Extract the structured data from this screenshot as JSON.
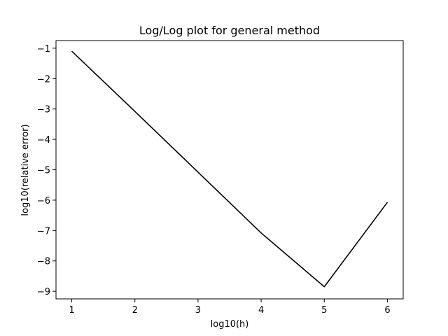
{
  "chart_data": {
    "type": "line",
    "title": "Log/Log plot for general method",
    "xlabel": "log10(h)",
    "ylabel": "log10(relative error)",
    "xlim": [
      0.75,
      6.25
    ],
    "ylim": [
      -9.25,
      -0.75
    ],
    "xticks": [
      1,
      2,
      3,
      4,
      5,
      6
    ],
    "yticks": [
      -1,
      -2,
      -3,
      -4,
      -5,
      -6,
      -7,
      -8,
      -9
    ],
    "xtick_labels": [
      "1",
      "2",
      "3",
      "4",
      "5",
      "6"
    ],
    "ytick_labels": [
      "−1",
      "−2",
      "−3",
      "−4",
      "−5",
      "−6",
      "−7",
      "−8",
      "−9"
    ],
    "grid": false,
    "series": [
      {
        "color": "#000000",
        "x": [
          1,
          2,
          3,
          4,
          5,
          6
        ],
        "y": [
          -1.1,
          -3.08,
          -5.08,
          -7.08,
          -8.85,
          -6.07
        ]
      }
    ]
  }
}
